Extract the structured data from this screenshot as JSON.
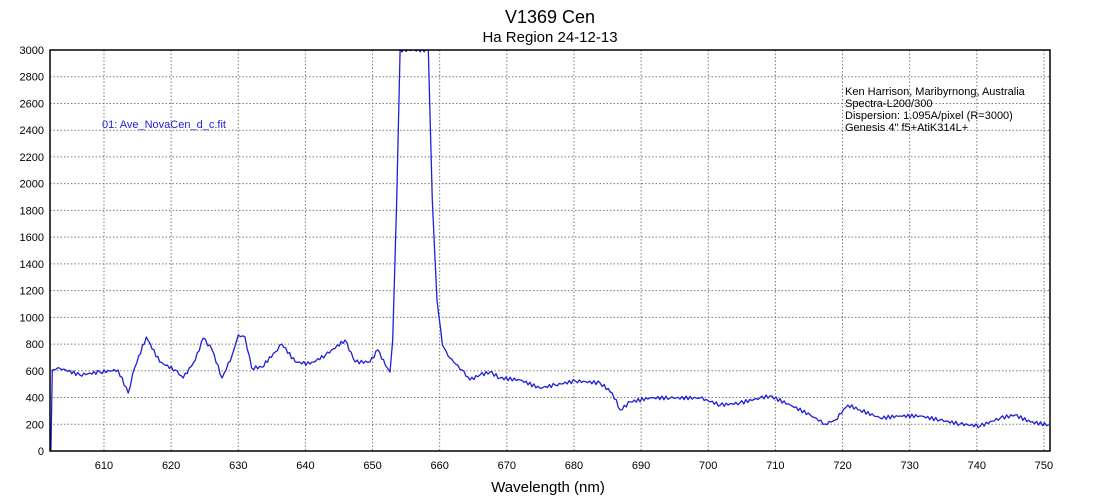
{
  "chart_data": {
    "type": "line",
    "title": "V1369 Cen",
    "subtitle": "Ha Region 24-12-13",
    "xlabel": "Wavelength (nm)",
    "ylabel": "",
    "xlim": [
      602,
      751
    ],
    "ylim": [
      0,
      3000
    ],
    "xticks": [
      610,
      620,
      630,
      640,
      650,
      660,
      670,
      680,
      690,
      700,
      710,
      720,
      730,
      740,
      750
    ],
    "yticks": [
      0,
      200,
      400,
      600,
      800,
      1000,
      1200,
      1400,
      1600,
      1800,
      2000,
      2200,
      2400,
      2600,
      2800,
      3000
    ],
    "grid": true,
    "grid_style": "dotted",
    "legend_position": "upper-left",
    "series": [
      {
        "name": "01: Ave_NovaCen_d_c.fit",
        "color": "#1f1fd6",
        "x": [
          602.1,
          602.3,
          603.4,
          606.4,
          609.4,
          612.1,
          613.6,
          614.6,
          616.3,
          618.3,
          620.6,
          621.8,
          623.6,
          624.8,
          626.1,
          627.6,
          629.1,
          630.0,
          631.0,
          632.0,
          633.5,
          635.5,
          636.5,
          638.5,
          640.7,
          643.0,
          645.9,
          647.4,
          649.6,
          650.8,
          651.9,
          652.6,
          653.0,
          653.6,
          654.1,
          658.3,
          658.9,
          659.6,
          660.4,
          661.5,
          663.3,
          664.5,
          666.0,
          667.5,
          669.0,
          672.0,
          674.9,
          677.2,
          680.2,
          683.9,
          685.7,
          686.9,
          688.4,
          691.3,
          694.3,
          698.8,
          701.8,
          704.7,
          707.7,
          709.2,
          712.2,
          715.2,
          717.4,
          718.9,
          720.8,
          722.6,
          725.6,
          728.6,
          731.5,
          734.5,
          737.5,
          740.5,
          743.5,
          745.7,
          748.0,
          750.7
        ],
        "values": [
          0,
          606,
          620,
          569,
          591,
          606,
          434,
          628,
          853,
          666,
          606,
          546,
          681,
          845,
          756,
          546,
          718,
          868,
          853,
          621,
          628,
          741,
          800,
          666,
          651,
          718,
          830,
          666,
          666,
          756,
          643,
          591,
          830,
          1878,
          3000,
          3000,
          1878,
          1130,
          793,
          696,
          606,
          531,
          569,
          591,
          546,
          531,
          471,
          494,
          524,
          509,
          434,
          307,
          367,
          397,
          397,
          397,
          344,
          359,
          397,
          412,
          344,
          269,
          202,
          232,
          344,
          307,
          247,
          262,
          262,
          232,
          202,
          187,
          247,
          269,
          217,
          195
        ]
      }
    ],
    "annotations": [
      "Ken Harrison, Maribyrnong, Australia",
      "Spectra-L200/300",
      "Dispersion: 1.095A/pixel (R=3000)",
      "Genesis 4\" f5+AtiK314L+"
    ]
  },
  "legend": {
    "label": "01: Ave_NovaCen_d_c.fit"
  },
  "notes": {
    "line1": "Ken Harrison, Maribyrnong, Australia",
    "line2": "Spectra-L200/300",
    "line3": "Dispersion: 1.095A/pixel (R=3000)",
    "line4": "Genesis 4\" f5+AtiK314L+"
  }
}
